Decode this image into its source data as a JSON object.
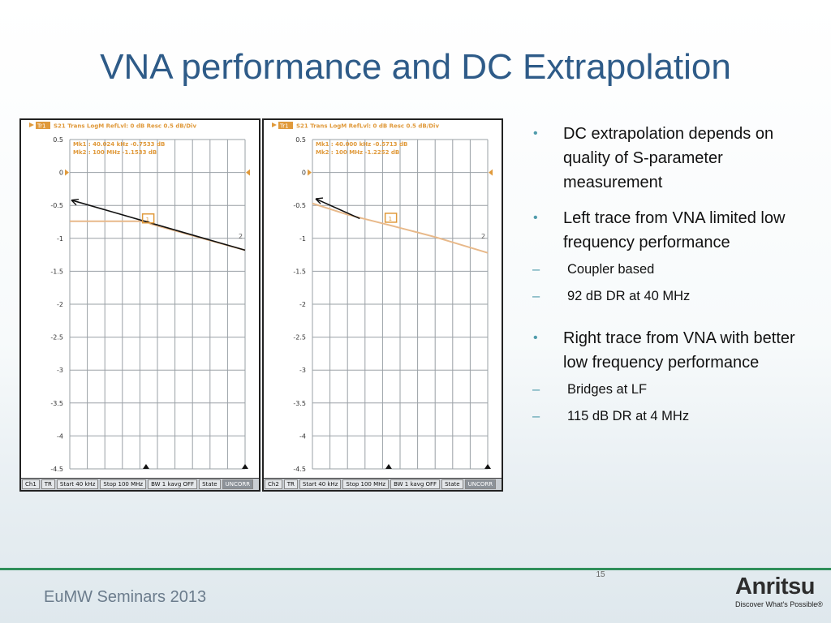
{
  "slide": {
    "title": "VNA performance and DC Extrapolation",
    "page_number": "15",
    "footer": "EuMW Seminars 2013",
    "logo": {
      "name": "Anritsu",
      "tagline": "Discover What's Possible®"
    }
  },
  "bullets": [
    {
      "text": "DC extrapolation depends on quality of S-parameter measurement",
      "subs": []
    },
    {
      "text": "Left trace from VNA limited low frequency performance",
      "subs": [
        "Coupler based",
        "92 dB DR at 40 MHz"
      ]
    },
    {
      "text": "Right trace from VNA with better low frequency performance",
      "subs": [
        "Bridges at LF",
        "115 dB DR at 4 MHz"
      ]
    }
  ],
  "vna_left": {
    "header": "S21 Trans LogM RefLvl: 0  dB Resc 0.5  dB/Div",
    "trace_label": "Tr1",
    "markers": [
      "Mk1 :  40.024 kHz  -0.7533 dB",
      "Mk2 :  100 MHz  -1.1533 dB"
    ],
    "status": [
      "Ch1",
      "TR",
      "Start 40 kHz",
      "Stop 100 MHz",
      "BW 1 kavg OFF",
      "State",
      "UNCORR"
    ],
    "y_ticks": [
      "0.5",
      "0",
      "-0.5",
      "-1",
      "-1.5",
      "-2",
      "-2.5",
      "-3",
      "-3.5",
      "-4",
      "-4.5"
    ]
  },
  "vna_right": {
    "header": "S21 Trans LogM RefLvl: 0  dB Resc 0.5  dB/Div",
    "trace_label": "Tr1",
    "markers": [
      "Mk1 :  40.000 kHz  -0.5713 dB",
      "Mk2 :  100 MHz  -1.2252 dB"
    ],
    "status": [
      "Ch2",
      "TR",
      "Start 40 kHz",
      "Stop 100 MHz",
      "BW 1 kavg OFF",
      "State",
      "UNCORR"
    ],
    "y_ticks": [
      "0.5",
      "0",
      "-0.5",
      "-1",
      "-1.5",
      "-2",
      "-2.5",
      "-3",
      "-3.5",
      "-4",
      "-4.5"
    ]
  },
  "colors": {
    "title": "#2e5b88",
    "bullet": "#4f9bab",
    "trace": "#e8b98a",
    "footer_line": "#2f8f5a"
  }
}
